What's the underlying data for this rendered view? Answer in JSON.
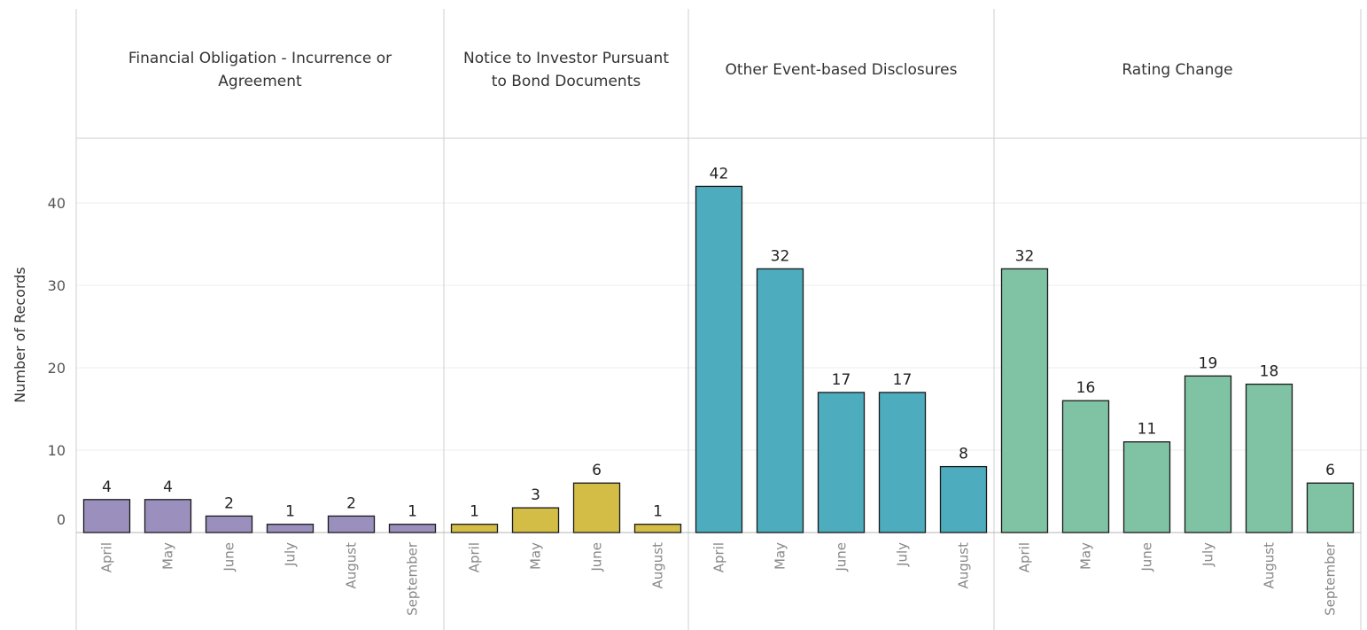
{
  "chart_data": {
    "type": "bar",
    "ylabel": "Number of Records",
    "ylim": [
      0,
      48
    ],
    "yticks": [
      0,
      10,
      20,
      30,
      40
    ],
    "grid": true,
    "panels": [
      {
        "name": "Financial Obligation - Incurrence or Agreement",
        "header_lines": [
          "Financial Obligation - Incurrence or",
          "Agreement"
        ],
        "color": "#9b8fbd",
        "categories": [
          "April",
          "May",
          "June",
          "July",
          "August",
          "September"
        ],
        "values": [
          4,
          4,
          2,
          1,
          2,
          1
        ]
      },
      {
        "name": "Notice to Investor Pursuant to Bond Documents",
        "header_lines": [
          "Notice to Investor Pursuant",
          "to Bond Documents"
        ],
        "color": "#d3bd47",
        "categories": [
          "April",
          "May",
          "June",
          "August"
        ],
        "values": [
          1,
          3,
          6,
          1
        ]
      },
      {
        "name": "Other Event-based Disclosures",
        "header_lines": [
          "Other Event-based Disclosures"
        ],
        "color": "#4dacbd",
        "categories": [
          "April",
          "May",
          "June",
          "July",
          "August"
        ],
        "values": [
          42,
          32,
          17,
          17,
          8
        ]
      },
      {
        "name": "Rating Change",
        "header_lines": [
          "Rating Change"
        ],
        "color": "#80c2a4",
        "categories": [
          "April",
          "May",
          "June",
          "July",
          "August",
          "September"
        ],
        "values": [
          32,
          16,
          11,
          19,
          18,
          6
        ]
      }
    ]
  }
}
